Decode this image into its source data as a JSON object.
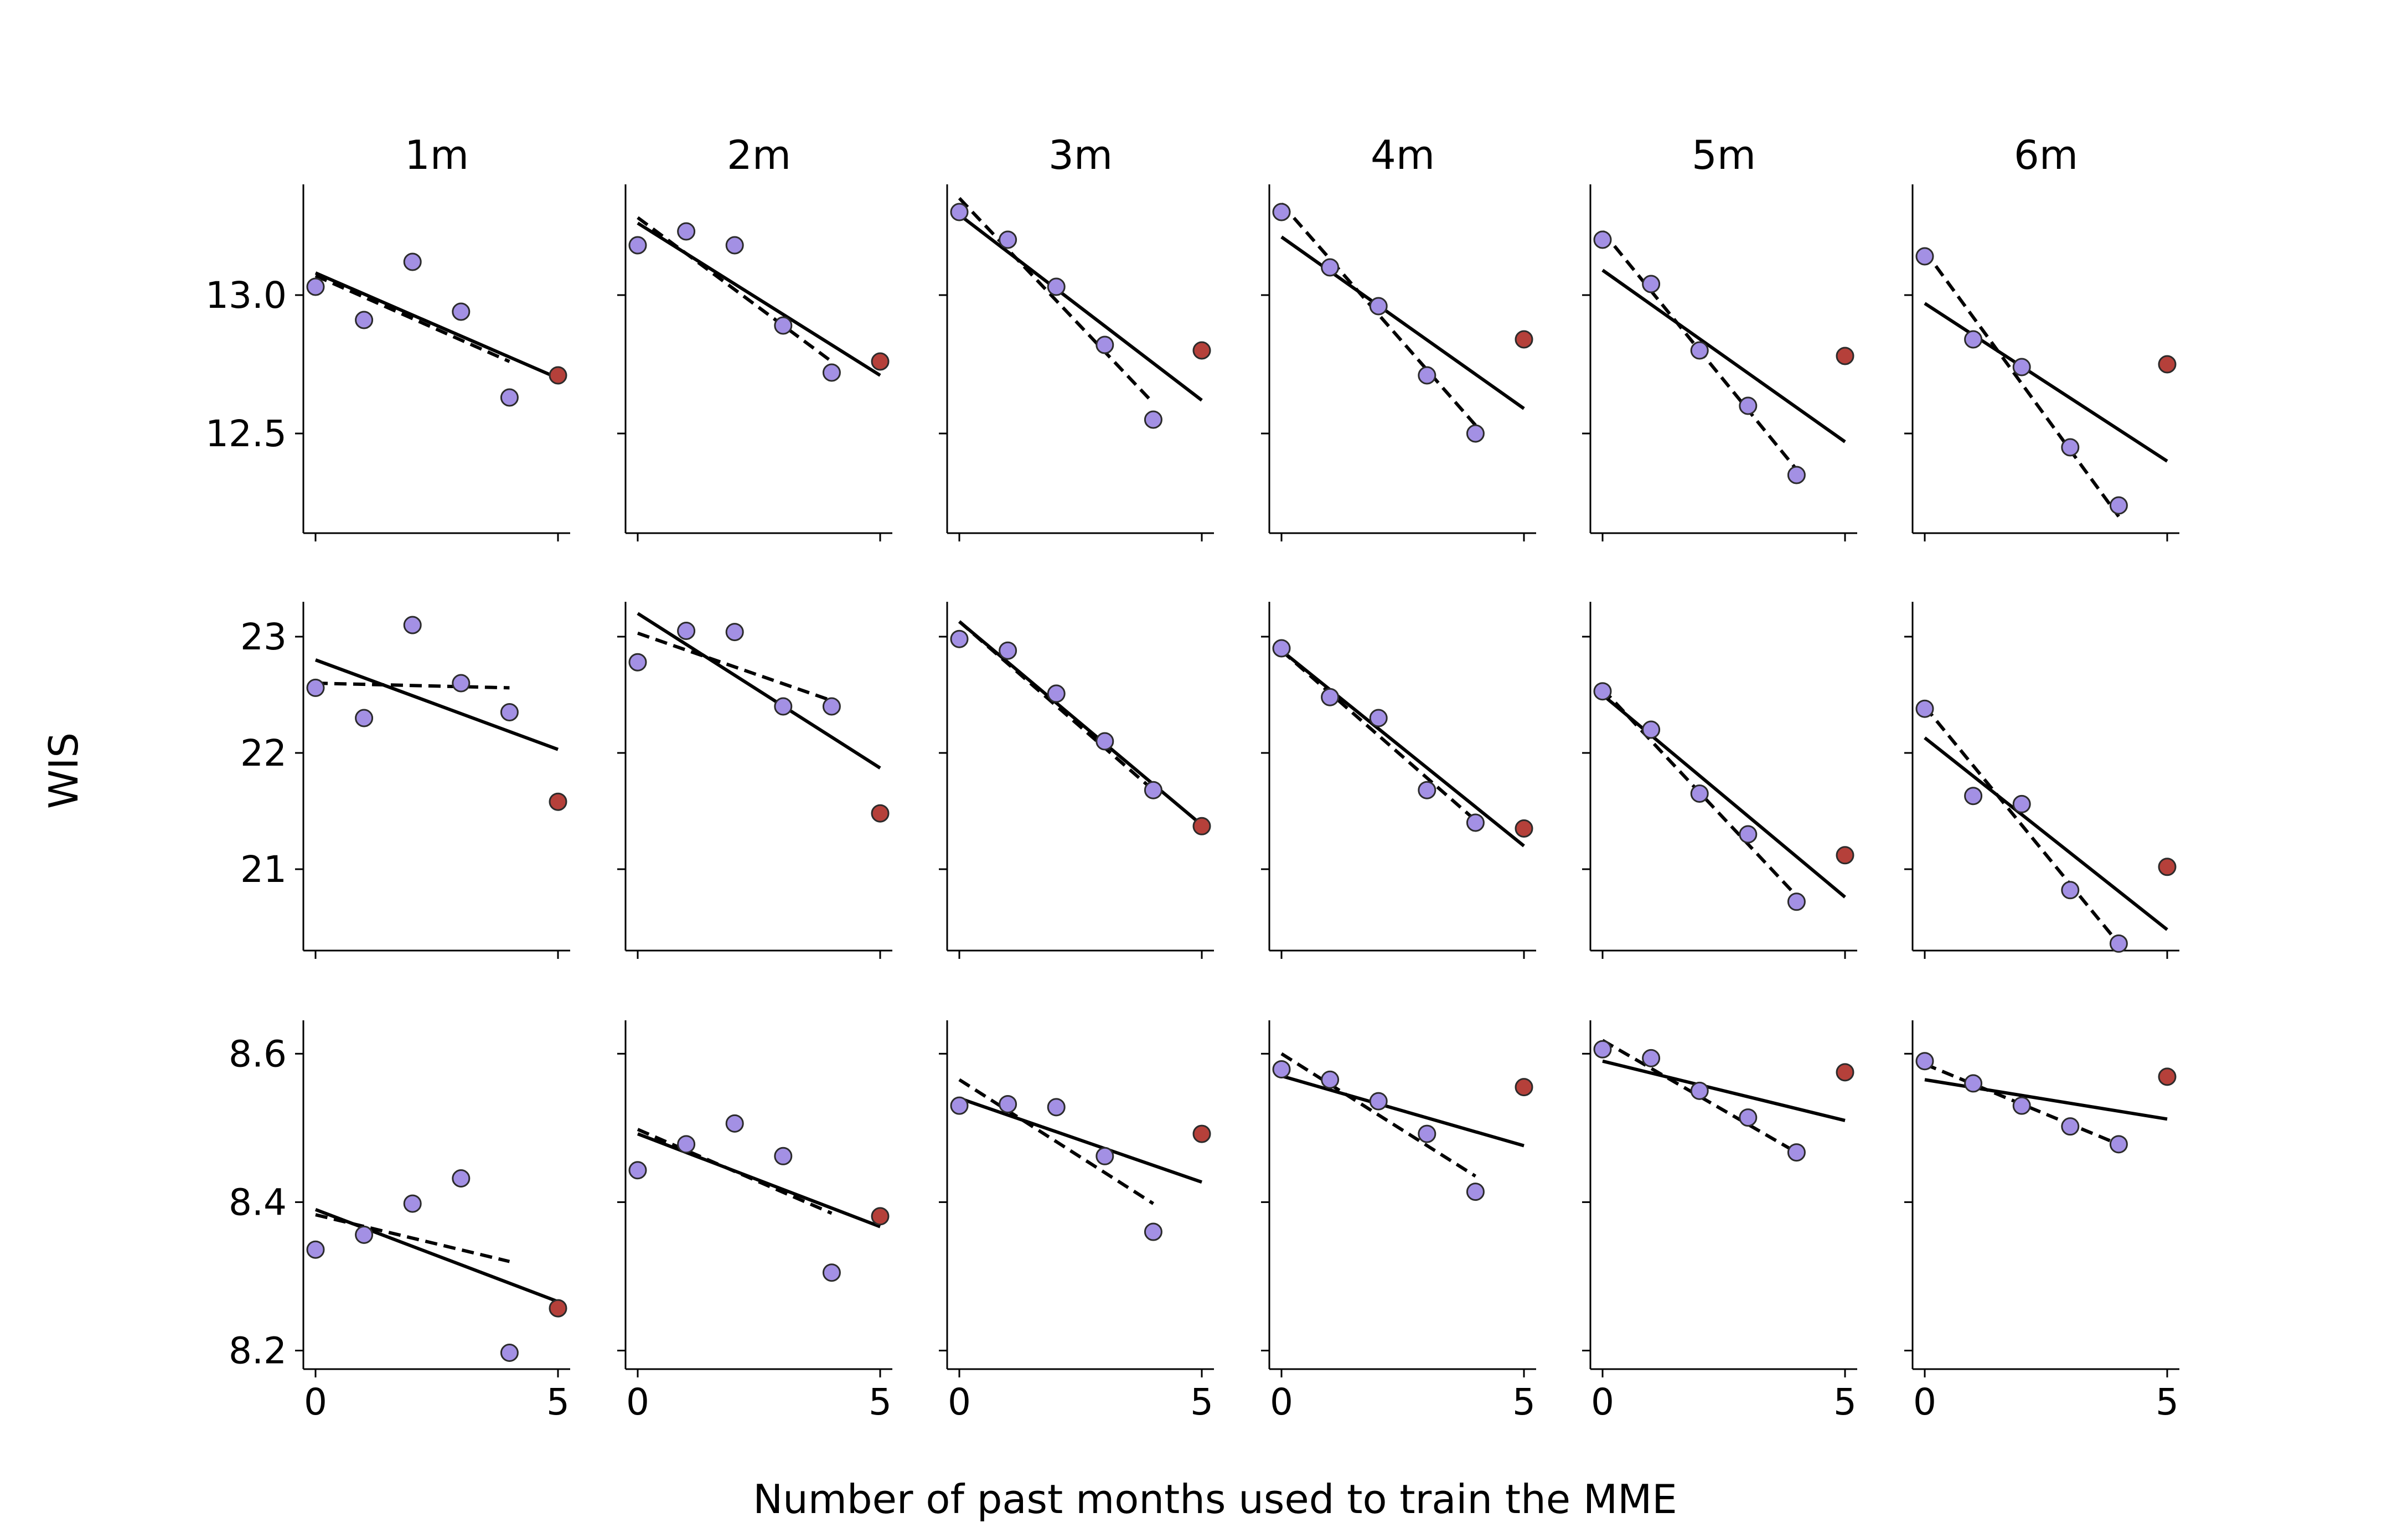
{
  "chart_data": {
    "type": "scatter",
    "xlabel": "Number of past months used to train the MME",
    "ylabel": "WIS",
    "columns": [
      "1m",
      "2m",
      "3m",
      "4m",
      "5m",
      "6m"
    ],
    "x": [
      0,
      1,
      2,
      3,
      4,
      5
    ],
    "xticks": [
      "0",
      "5"
    ],
    "colors": {
      "past_point": "#a390e4",
      "held_out_point": "#b5403a",
      "line": "#000000"
    },
    "legend": "none",
    "grid": false,
    "rows": [
      {
        "ylim": [
          12.14,
          13.4
        ],
        "yticks": [
          12.5,
          13.0
        ],
        "ytick_labels": [
          "12.5",
          "13.0"
        ],
        "panels": [
          {
            "y": [
              13.03,
              12.91,
              13.12,
              12.94,
              12.63,
              12.71
            ],
            "solid": [
              13.08,
              12.7
            ],
            "dashed": [
              13.07,
              12.76
            ]
          },
          {
            "y": [
              13.18,
              13.23,
              13.18,
              12.89,
              12.72,
              12.76
            ],
            "solid": [
              13.26,
              12.71
            ],
            "dashed": [
              13.28,
              12.76
            ]
          },
          {
            "y": [
              13.3,
              13.2,
              13.03,
              12.82,
              12.55,
              12.8
            ],
            "solid": [
              13.29,
              12.62
            ],
            "dashed": [
              13.35,
              12.61
            ]
          },
          {
            "y": [
              13.3,
              13.1,
              12.96,
              12.71,
              12.5,
              12.84
            ],
            "solid": [
              13.21,
              12.59
            ],
            "dashed": [
              13.33,
              12.53
            ]
          },
          {
            "y": [
              13.2,
              13.04,
              12.8,
              12.6,
              12.35,
              12.78
            ],
            "solid": [
              13.09,
              12.47
            ],
            "dashed": [
              13.23,
              12.37
            ]
          },
          {
            "y": [
              13.14,
              12.84,
              12.74,
              12.45,
              12.24,
              12.75
            ],
            "solid": [
              12.97,
              12.4
            ],
            "dashed": [
              13.16,
              12.2
            ]
          }
        ]
      },
      {
        "ylim": [
          20.3,
          23.3
        ],
        "yticks": [
          21,
          22,
          23
        ],
        "ytick_labels": [
          "21",
          "22",
          "23"
        ],
        "panels": [
          {
            "y": [
              22.56,
              22.3,
              23.1,
              22.6,
              22.35,
              21.58
            ],
            "solid": [
              22.8,
              22.03
            ],
            "dashed": [
              22.6,
              22.56
            ]
          },
          {
            "y": [
              22.78,
              23.05,
              23.04,
              22.4,
              22.4,
              21.48
            ],
            "solid": [
              23.2,
              21.87
            ],
            "dashed": [
              23.03,
              22.45
            ]
          },
          {
            "y": [
              22.98,
              22.88,
              22.51,
              22.1,
              21.68,
              21.37
            ],
            "solid": [
              23.13,
              21.38
            ],
            "dashed": [
              23.13,
              21.68
            ]
          },
          {
            "y": [
              22.9,
              22.48,
              22.3,
              21.68,
              21.4,
              21.35
            ],
            "solid": [
              22.88,
              21.2
            ],
            "dashed": [
              22.88,
              21.42
            ]
          },
          {
            "y": [
              22.53,
              22.2,
              21.65,
              21.3,
              20.72,
              21.12
            ],
            "solid": [
              22.5,
              20.76
            ],
            "dashed": [
              22.55,
              20.77
            ]
          },
          {
            "y": [
              22.38,
              21.63,
              21.56,
              20.82,
              20.36,
              21.02
            ],
            "solid": [
              22.13,
              20.48
            ],
            "dashed": [
              22.4,
              20.36
            ]
          }
        ]
      },
      {
        "ylim": [
          8.175,
          8.645
        ],
        "yticks": [
          8.2,
          8.4,
          8.6
        ],
        "ytick_labels": [
          "8.2",
          "8.4",
          "8.6"
        ],
        "panels": [
          {
            "y": [
              8.336,
              8.356,
              8.398,
              8.432,
              8.197,
              8.257
            ],
            "solid": [
              8.39,
              8.266
            ],
            "dashed": [
              8.383,
              8.32
            ]
          },
          {
            "y": [
              8.443,
              8.478,
              8.506,
              8.462,
              8.305,
              8.381
            ],
            "solid": [
              8.492,
              8.367
            ],
            "dashed": [
              8.498,
              8.385
            ]
          },
          {
            "y": [
              8.53,
              8.532,
              8.528,
              8.462,
              8.36,
              8.492
            ],
            "solid": [
              8.54,
              8.427
            ],
            "dashed": [
              8.565,
              8.398
            ]
          },
          {
            "y": [
              8.579,
              8.565,
              8.536,
              8.492,
              8.414,
              8.555
            ],
            "solid": [
              8.57,
              8.476
            ],
            "dashed": [
              8.6,
              8.435
            ]
          },
          {
            "y": [
              8.606,
              8.594,
              8.55,
              8.514,
              8.467,
              8.575
            ],
            "solid": [
              8.59,
              8.51
            ],
            "dashed": [
              8.618,
              8.467
            ]
          },
          {
            "y": [
              8.59,
              8.56,
              8.53,
              8.502,
              8.478,
              8.569
            ],
            "solid": [
              8.565,
              8.512
            ],
            "dashed": [
              8.586,
              8.478
            ]
          }
        ]
      }
    ]
  }
}
